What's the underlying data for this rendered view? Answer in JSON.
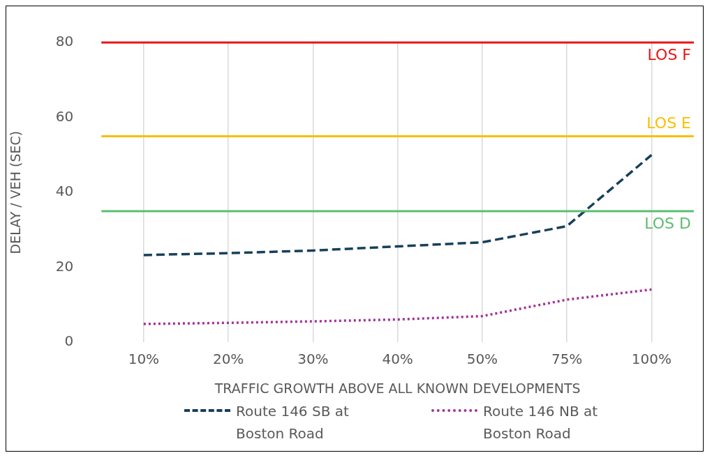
{
  "chart_data": {
    "type": "line",
    "xlabel": "TRAFFIC GROWTH ABOVE ALL KNOWN DEVELOPMENTS",
    "ylabel": "DELAY / VEH (SEC)",
    "categories": [
      "10%",
      "20%",
      "30%",
      "40%",
      "50%",
      "75%",
      "100%"
    ],
    "series": [
      {
        "name": "Route 146 SB at Boston Road",
        "color": "#17405a",
        "line_style": "dashed",
        "values": [
          23.3,
          23.8,
          24.5,
          25.6,
          26.7,
          31.0,
          50.0
        ]
      },
      {
        "name": "Route 146 NB at Boston Road",
        "color": "#a0339a",
        "line_style": "dotted",
        "values": [
          4.9,
          5.2,
          5.6,
          6.1,
          7.0,
          11.4,
          14.1
        ]
      }
    ],
    "ylim": [
      0,
      80
    ],
    "yticks": [
      0,
      20,
      40,
      60,
      80
    ],
    "grid": "x",
    "legend": "bottom",
    "marker": "none",
    "ref_lines": [
      {
        "axis": "y",
        "value": 80,
        "label": "LOS F",
        "color": "#e81414"
      },
      {
        "axis": "y",
        "value": 55,
        "label": "LOS E",
        "color": "#f7c002"
      },
      {
        "axis": "y",
        "value": 35,
        "label": "LOS D",
        "color": "#5cbd72"
      }
    ]
  }
}
